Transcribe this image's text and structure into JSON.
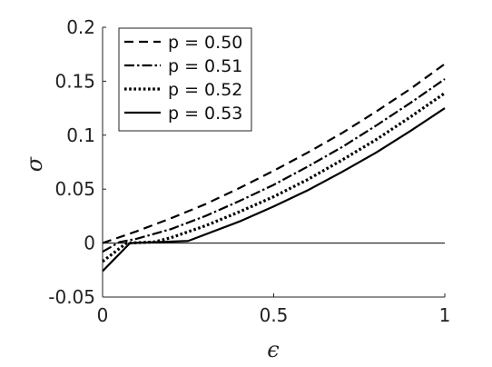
{
  "chart_data": {
    "type": "line",
    "title": "",
    "xlabel": "ϵ",
    "ylabel": "σ",
    "xlim": [
      0,
      1
    ],
    "ylim": [
      -0.05,
      0.2
    ],
    "xticks": [
      0,
      0.5,
      1
    ],
    "xtick_labels": [
      "0",
      "0.5",
      "1"
    ],
    "yticks": [
      -0.05,
      0,
      0.05,
      0.1,
      0.15,
      0.2
    ],
    "ytick_labels": [
      "-0.05",
      "0",
      "0.05",
      "0.1",
      "0.15",
      "0.2"
    ],
    "grid": false,
    "legend_position": "top-left",
    "reference_line": {
      "y": 0
    },
    "series": [
      {
        "name": "p = 0.50",
        "style": "dashed",
        "x": [
          0,
          0.1,
          0.2,
          0.3,
          0.4,
          0.5,
          0.6,
          0.7,
          0.8,
          0.9,
          1.0
        ],
        "y": [
          0,
          0.011,
          0.023,
          0.036,
          0.051,
          0.067,
          0.084,
          0.102,
          0.122,
          0.143,
          0.166
        ]
      },
      {
        "name": "p = 0.51",
        "style": "dash-dot",
        "x": [
          0,
          0.05,
          0.1,
          0.2,
          0.3,
          0.4,
          0.5,
          0.6,
          0.7,
          0.8,
          0.9,
          1.0
        ],
        "y": [
          -0.008,
          0.001,
          0.004,
          0.013,
          0.025,
          0.039,
          0.054,
          0.071,
          0.089,
          0.109,
          0.13,
          0.152
        ]
      },
      {
        "name": "p = 0.52",
        "style": "dotted",
        "x": [
          0,
          0.07,
          0.15,
          0.2,
          0.3,
          0.4,
          0.5,
          0.6,
          0.7,
          0.8,
          0.9,
          1.0
        ],
        "y": [
          -0.017,
          0.0,
          0.001,
          0.005,
          0.016,
          0.029,
          0.043,
          0.059,
          0.077,
          0.096,
          0.117,
          0.139
        ]
      },
      {
        "name": "p = 0.53",
        "style": "solid",
        "x": [
          0,
          0.08,
          0.25,
          0.3,
          0.4,
          0.5,
          0.6,
          0.7,
          0.8,
          0.9,
          1.0
        ],
        "y": [
          -0.026,
          0.0,
          0.002,
          0.008,
          0.02,
          0.034,
          0.049,
          0.066,
          0.084,
          0.104,
          0.125
        ]
      }
    ]
  }
}
